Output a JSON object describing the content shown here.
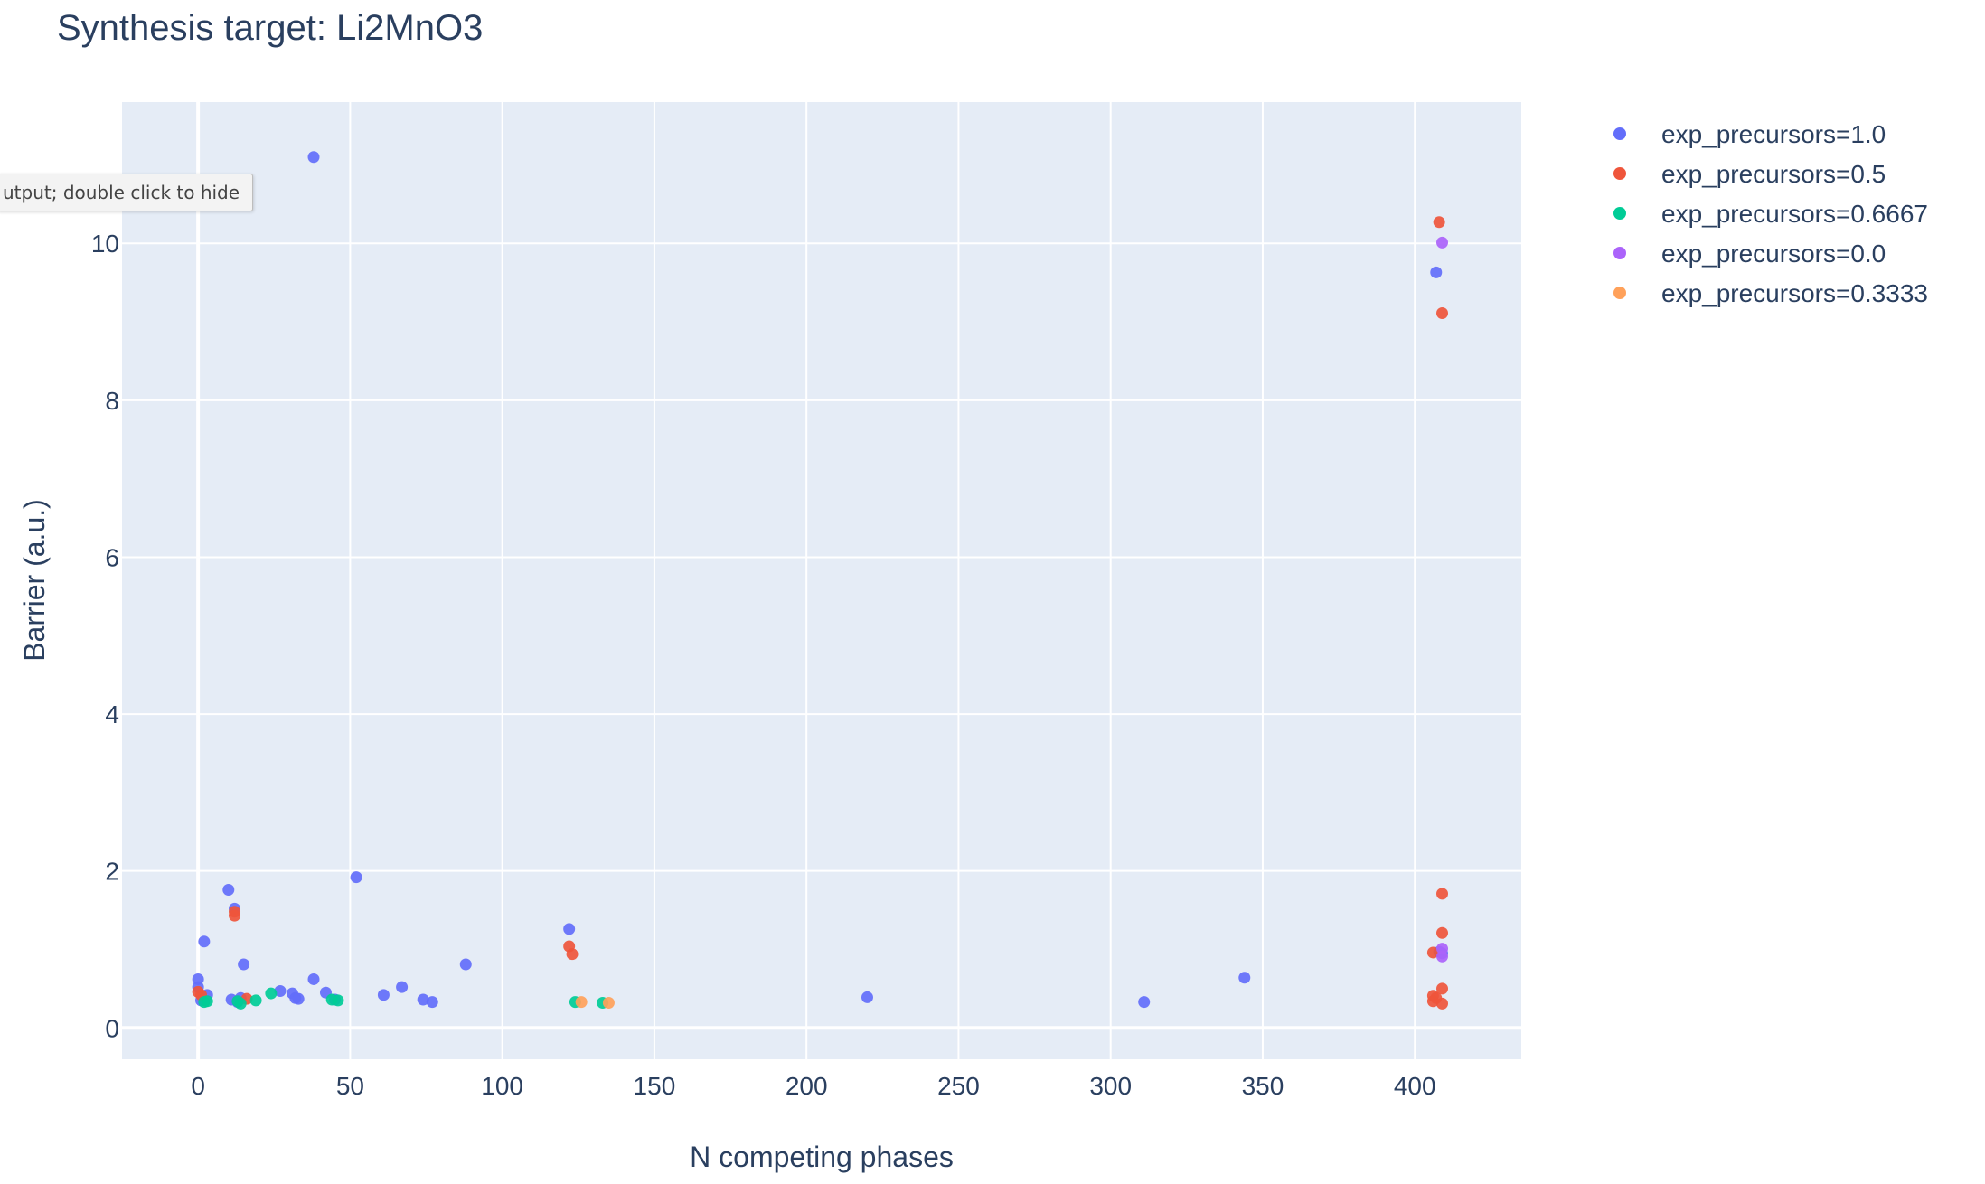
{
  "tooltip": {
    "text": "utput; double click to hide"
  },
  "chart_data": {
    "type": "scatter",
    "title": "Synthesis target: Li2MnO3",
    "xlabel": "N competing phases",
    "ylabel": "Barrier (a.u.)",
    "xlim": [
      -25,
      435
    ],
    "ylim": [
      -0.4,
      11.8
    ],
    "xticks": [
      0,
      50,
      100,
      150,
      200,
      250,
      300,
      350,
      400
    ],
    "yticks": [
      0,
      2,
      4,
      6,
      8,
      10
    ],
    "grid": true,
    "legend_position": "right",
    "plot_bgcolor": "#E5ECF6",
    "series": [
      {
        "name": "exp_precursors=1.0",
        "color": "#636EFA",
        "points": [
          [
            0,
            0.62
          ],
          [
            0,
            0.52
          ],
          [
            1,
            0.35
          ],
          [
            2,
            1.1
          ],
          [
            3,
            0.42
          ],
          [
            10,
            1.76
          ],
          [
            11,
            0.36
          ],
          [
            12,
            1.52
          ],
          [
            13,
            0.33
          ],
          [
            14,
            0.38
          ],
          [
            15,
            0.81
          ],
          [
            27,
            0.47
          ],
          [
            31,
            0.44
          ],
          [
            32,
            0.38
          ],
          [
            33,
            0.37
          ],
          [
            38,
            11.1
          ],
          [
            38,
            0.62
          ],
          [
            42,
            0.45
          ],
          [
            45,
            0.36
          ],
          [
            52,
            1.92
          ],
          [
            61,
            0.42
          ],
          [
            67,
            0.52
          ],
          [
            74,
            0.36
          ],
          [
            77,
            0.33
          ],
          [
            88,
            0.81
          ],
          [
            122,
            1.26
          ],
          [
            220,
            0.39
          ],
          [
            311,
            0.33
          ],
          [
            344,
            0.64
          ],
          [
            407,
            9.63
          ],
          [
            408,
            0.97
          ],
          [
            409,
            0.95
          ]
        ]
      },
      {
        "name": "exp_precursors=0.5",
        "color": "#EF553B",
        "points": [
          [
            0,
            0.46
          ],
          [
            1,
            0.42
          ],
          [
            12,
            1.48
          ],
          [
            12,
            1.43
          ],
          [
            16,
            0.37
          ],
          [
            122,
            1.04
          ],
          [
            123,
            0.94
          ],
          [
            406,
            0.96
          ],
          [
            406,
            0.41
          ],
          [
            406,
            0.34
          ],
          [
            408,
            10.27
          ],
          [
            409,
            9.11
          ],
          [
            409,
            1.71
          ],
          [
            409,
            1.21
          ],
          [
            409,
            0.5
          ],
          [
            409,
            0.31
          ],
          [
            407,
            0.38
          ]
        ]
      },
      {
        "name": "exp_precursors=0.6667",
        "color": "#00CC96",
        "points": [
          [
            2,
            0.33
          ],
          [
            3,
            0.34
          ],
          [
            13,
            0.34
          ],
          [
            14,
            0.31
          ],
          [
            19,
            0.35
          ],
          [
            24,
            0.44
          ],
          [
            44,
            0.36
          ],
          [
            46,
            0.35
          ],
          [
            124,
            0.33
          ],
          [
            133,
            0.32
          ]
        ]
      },
      {
        "name": "exp_precursors=0.0",
        "color": "#AB63FA",
        "points": [
          [
            409,
            10.01
          ],
          [
            409,
            1.01
          ],
          [
            409,
            0.91
          ]
        ]
      },
      {
        "name": "exp_precursors=0.3333",
        "color": "#FFA15A",
        "points": [
          [
            126,
            0.33
          ],
          [
            135,
            0.32
          ]
        ]
      }
    ]
  }
}
